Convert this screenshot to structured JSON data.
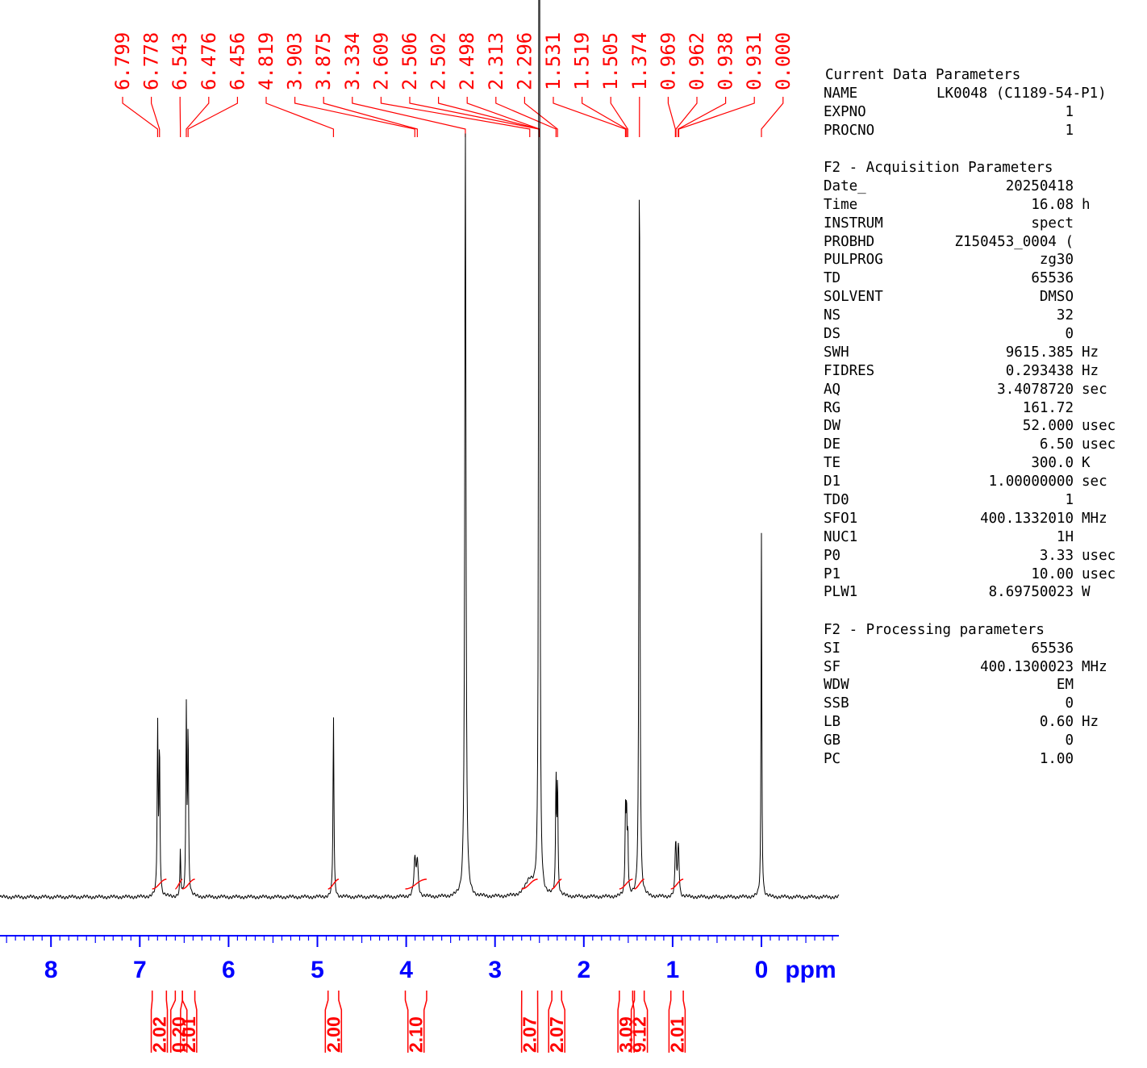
{
  "chart_data": {
    "type": "line",
    "xlabel": "ppm",
    "xlim": [
      8.9,
      -0.88
    ],
    "x_ticks": [
      8,
      7,
      6,
      5,
      4,
      3,
      2,
      1,
      0
    ],
    "x_tick_labels": [
      "8",
      "7",
      "6",
      "5",
      "4",
      "3",
      "2",
      "1",
      "0"
    ],
    "peak_labels": [
      "6.799",
      "6.778",
      "6.543",
      "6.476",
      "6.456",
      "4.819",
      "3.903",
      "3.875",
      "3.334",
      "2.609",
      "2.506",
      "2.502",
      "2.498",
      "2.313",
      "2.296",
      "1.531",
      "1.519",
      "1.505",
      "1.374",
      "0.969",
      "0.962",
      "0.938",
      "0.931",
      "0.000"
    ],
    "peak_shifts": [
      6.799,
      6.778,
      6.543,
      6.476,
      6.456,
      4.819,
      3.903,
      3.875,
      3.334,
      2.609,
      2.506,
      2.502,
      2.498,
      2.313,
      2.296,
      1.531,
      1.519,
      1.505,
      1.374,
      0.969,
      0.962,
      0.938,
      0.931,
      0.0
    ],
    "peaks": [
      {
        "x": 6.799,
        "h": 0.21,
        "w": 0.006
      },
      {
        "x": 6.778,
        "h": 0.185,
        "w": 0.006
      },
      {
        "x": 6.543,
        "h": 0.058,
        "w": 0.005
      },
      {
        "x": 6.476,
        "h": 0.228,
        "w": 0.006
      },
      {
        "x": 6.456,
        "h": 0.202,
        "w": 0.006
      },
      {
        "x": 4.819,
        "h": 0.225,
        "w": 0.006
      },
      {
        "x": 3.903,
        "h": 0.043,
        "w": 0.012
      },
      {
        "x": 3.875,
        "h": 0.043,
        "w": 0.012
      },
      {
        "x": 3.334,
        "h": 0.95,
        "w": 0.008
      },
      {
        "x": 2.609,
        "h": 0.02,
        "w": 0.06
      },
      {
        "x": 2.506,
        "h": 0.66,
        "w": 0.005
      },
      {
        "x": 2.502,
        "h": 0.87,
        "w": 0.005
      },
      {
        "x": 2.498,
        "h": 0.62,
        "w": 0.005
      },
      {
        "x": 2.313,
        "h": 0.144,
        "w": 0.006
      },
      {
        "x": 2.296,
        "h": 0.137,
        "w": 0.006
      },
      {
        "x": 1.531,
        "h": 0.098,
        "w": 0.006
      },
      {
        "x": 1.519,
        "h": 0.095,
        "w": 0.006
      },
      {
        "x": 1.505,
        "h": 0.072,
        "w": 0.006
      },
      {
        "x": 1.374,
        "h": 0.96,
        "w": 0.006
      },
      {
        "x": 0.969,
        "h": 0.038,
        "w": 0.007
      },
      {
        "x": 0.962,
        "h": 0.044,
        "w": 0.007
      },
      {
        "x": 0.938,
        "h": 0.042,
        "w": 0.007
      },
      {
        "x": 0.931,
        "h": 0.036,
        "w": 0.007
      },
      {
        "x": 0.0,
        "h": 0.45,
        "w": 0.005
      }
    ],
    "integrals": [
      {
        "from": 6.86,
        "to": 6.7,
        "value": "2.02"
      },
      {
        "from": 6.6,
        "to": 6.52,
        "value": "0.20"
      },
      {
        "from": 6.52,
        "to": 6.38,
        "value": "2.01"
      },
      {
        "from": 4.88,
        "to": 4.76,
        "value": "2.00"
      },
      {
        "from": 4.01,
        "to": 3.77,
        "value": "2.10"
      },
      {
        "from": 2.7,
        "to": 2.52,
        "value": "2.07"
      },
      {
        "from": 2.36,
        "to": 2.25,
        "value": "2.07"
      },
      {
        "from": 1.6,
        "to": 1.45,
        "value": "3.09"
      },
      {
        "from": 1.43,
        "to": 1.32,
        "value": "9.12"
      },
      {
        "from": 1.02,
        "to": 0.88,
        "value": "2.01"
      }
    ]
  },
  "parameters": [
    {
      "title": "Current Data Parameters",
      "rows": [
        {
          "key": "NAME",
          "value": "LK0048 (C1189-54-P1)",
          "unit": ""
        },
        {
          "key": "EXPNO",
          "value": "1",
          "unit": ""
        },
        {
          "key": "PROCNO",
          "value": "1",
          "unit": ""
        }
      ]
    },
    {
      "title": "F2 - Acquisition Parameters",
      "rows": [
        {
          "key": "Date_",
          "value": "20250418",
          "unit": ""
        },
        {
          "key": "Time",
          "value": "16.08",
          "unit": "h"
        },
        {
          "key": "INSTRUM",
          "value": "spect",
          "unit": ""
        },
        {
          "key": "PROBHD",
          "value": "Z150453_0004 (",
          "unit": ""
        },
        {
          "key": "PULPROG",
          "value": "zg30",
          "unit": ""
        },
        {
          "key": "TD",
          "value": "65536",
          "unit": ""
        },
        {
          "key": "SOLVENT",
          "value": "DMSO",
          "unit": ""
        },
        {
          "key": "NS",
          "value": "32",
          "unit": ""
        },
        {
          "key": "DS",
          "value": "0",
          "unit": ""
        },
        {
          "key": "SWH",
          "value": "9615.385",
          "unit": "Hz"
        },
        {
          "key": "FIDRES",
          "value": "0.293438",
          "unit": "Hz"
        },
        {
          "key": "AQ",
          "value": "3.4078720",
          "unit": "sec"
        },
        {
          "key": "RG",
          "value": "161.72",
          "unit": ""
        },
        {
          "key": "DW",
          "value": "52.000",
          "unit": "usec"
        },
        {
          "key": "DE",
          "value": "6.50",
          "unit": "usec"
        },
        {
          "key": "TE",
          "value": "300.0",
          "unit": "K"
        },
        {
          "key": "D1",
          "value": "1.00000000",
          "unit": "sec"
        },
        {
          "key": "TD0",
          "value": "1",
          "unit": ""
        },
        {
          "key": "SFO1",
          "value": "400.1332010",
          "unit": "MHz"
        },
        {
          "key": "NUC1",
          "value": "1H",
          "unit": ""
        },
        {
          "key": "P0",
          "value": "3.33",
          "unit": "usec"
        },
        {
          "key": "P1",
          "value": "10.00",
          "unit": "usec"
        },
        {
          "key": "PLW1",
          "value": "8.69750023",
          "unit": "W"
        }
      ]
    },
    {
      "title": "F2 - Processing parameters",
      "rows": [
        {
          "key": "SI",
          "value": "65536",
          "unit": ""
        },
        {
          "key": "SF",
          "value": "400.1300023",
          "unit": "MHz"
        },
        {
          "key": "WDW",
          "value": "EM",
          "unit": ""
        },
        {
          "key": "SSB",
          "value": "0",
          "unit": ""
        },
        {
          "key": "LB",
          "value": "0.60",
          "unit": "Hz"
        },
        {
          "key": "GB",
          "value": "0",
          "unit": ""
        },
        {
          "key": "PC",
          "value": "1.00",
          "unit": ""
        }
      ]
    }
  ],
  "colors": {
    "spectrum": "#000000",
    "peak_labels": "#ff0000",
    "integrals": "#ff0000",
    "axis": "#0000ff"
  }
}
